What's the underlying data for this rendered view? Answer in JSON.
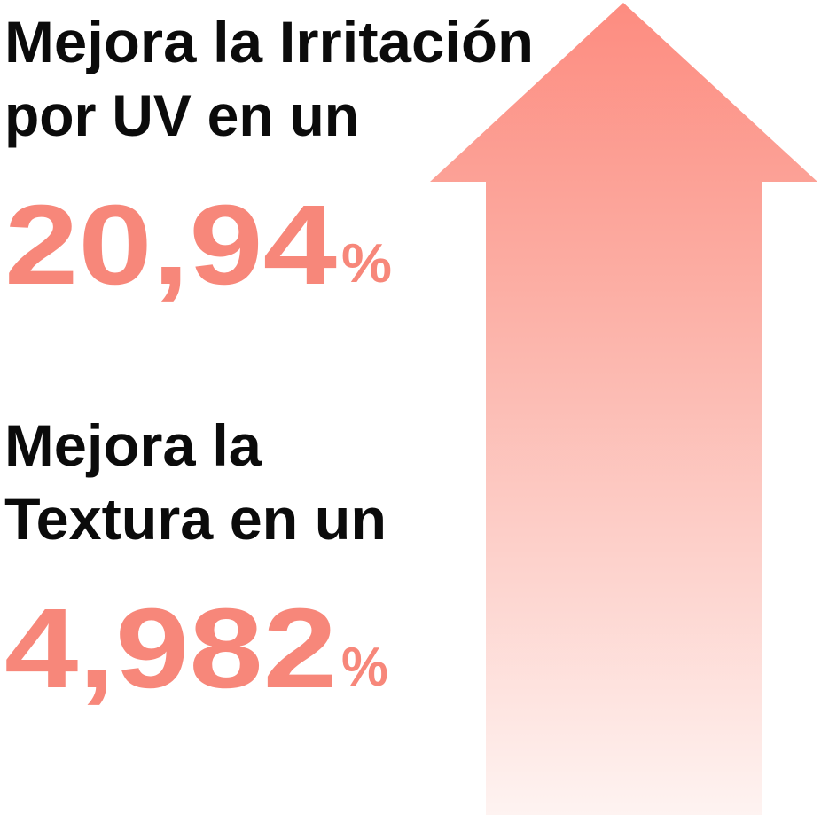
{
  "stats": [
    {
      "label_lines": [
        "Mejora la Irritación",
        "por UV en un"
      ],
      "number": "20,94",
      "unit": "%"
    },
    {
      "label_lines": [
        "Mejora la",
        "Textura en un"
      ],
      "number": "4,982",
      "unit": "%"
    }
  ]
}
